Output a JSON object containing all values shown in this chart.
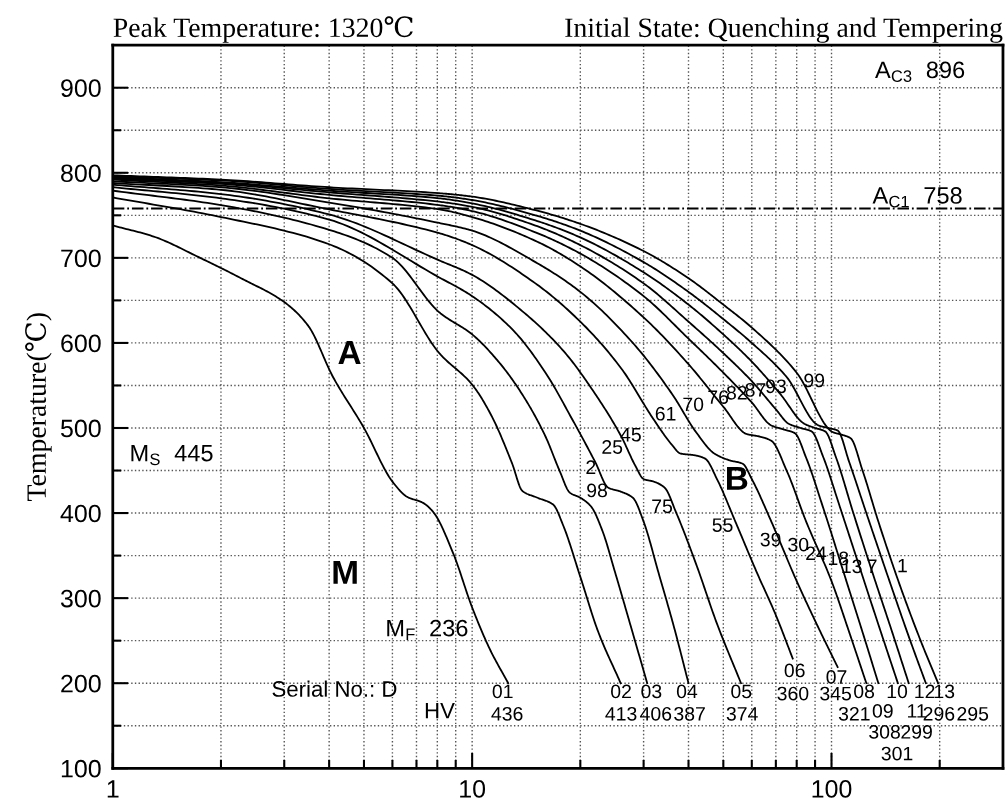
{
  "chart_data": {
    "type": "line",
    "title": "Peak Temperature: 1320℃",
    "subtitle": "Initial State: Quenching and Tempering",
    "ylabel": "Temperature(℃)",
    "log": "x",
    "grid": true,
    "marker": "none",
    "line_style": "solid",
    "xlim": [
      1,
      300
    ],
    "ylim": [
      100,
      950
    ],
    "xticks": [
      1,
      {
        "value": 2,
        "label": null
      },
      {
        "value": 3,
        "label": null
      },
      {
        "value": 4,
        "label": null
      },
      {
        "value": 5,
        "label": null
      },
      {
        "value": 6,
        "label": null
      },
      {
        "value": 7,
        "label": null
      },
      {
        "value": 8,
        "label": null
      },
      {
        "value": 9,
        "label": null
      },
      10,
      {
        "value": 20,
        "label": null
      },
      {
        "value": 30,
        "label": null
      },
      {
        "value": 40,
        "label": null
      },
      {
        "value": 50,
        "label": null
      },
      {
        "value": 60,
        "label": null
      },
      {
        "value": 70,
        "label": null
      },
      {
        "value": 80,
        "label": null
      },
      {
        "value": 90,
        "label": null
      },
      100,
      {
        "value": 200,
        "label": null
      }
    ],
    "yticks": [
      100,
      {
        "value": 150,
        "label": null
      },
      200,
      {
        "value": 250,
        "label": null
      },
      300,
      {
        "value": 350,
        "label": null
      },
      400,
      {
        "value": 450,
        "label": null
      },
      500,
      {
        "value": 550,
        "label": null
      },
      600,
      {
        "value": 650,
        "label": null
      },
      700,
      {
        "value": 750,
        "label": null
      },
      800,
      {
        "value": 850,
        "label": null
      },
      900
    ],
    "series": [
      {
        "color": "#000000",
        "x": [
          1,
          1.3,
          1.75,
          2.3,
          3,
          3.5,
          4.1,
          5,
          6,
          6.6,
          7.3,
          7.8,
          8.85,
          10,
          11.2,
          12.6
        ],
        "values": [
          738,
          725,
          700,
          675,
          648,
          620,
          560,
          500,
          437,
          419,
          412,
          401,
          353,
          289,
          240,
          200
        ]
      },
      {
        "color": "#000000",
        "x": [
          1,
          2,
          4,
          6,
          8.1,
          10,
          11.3,
          12.9,
          13.8,
          15.2,
          16.8,
          17.9,
          20,
          22.4,
          25.9
        ],
        "values": [
          771,
          748,
          716,
          670,
          588,
          551,
          515,
          459,
          426,
          418,
          410,
          386,
          325,
          261,
          200
        ]
      },
      {
        "color": "#000000",
        "x": [
          1,
          2,
          4,
          6,
          8.1,
          10,
          12,
          14,
          16,
          17.5,
          18.7,
          20,
          21.4,
          23,
          25,
          27.5,
          30.7
        ],
        "values": [
          779,
          762,
          733,
          700,
          636,
          610,
          575,
          535,
          490,
          450,
          424,
          418,
          408,
          380,
          330,
          270,
          200
        ]
      },
      {
        "color": "#000000",
        "x": [
          1,
          2,
          4,
          8.1,
          10,
          13,
          16,
          19,
          22,
          23.9,
          26,
          28,
          30,
          33,
          36.5,
          40
        ],
        "values": [
          783,
          770,
          745,
          677,
          655,
          615,
          565,
          510,
          460,
          430,
          425,
          418,
          390,
          330,
          265,
          200
        ]
      },
      {
        "color": "#000000",
        "x": [
          1,
          2,
          4,
          8.1,
          10,
          14,
          18,
          22,
          26,
          28.5,
          30,
          32,
          34.3,
          37,
          42,
          48,
          56
        ],
        "values": [
          786,
          775,
          751,
          697,
          680,
          635,
          590,
          540,
          490,
          455,
          440,
          437,
          430,
          400,
          340,
          270,
          200
        ]
      },
      {
        "color": "#000000",
        "x": [
          1,
          2,
          4,
          8.1,
          10,
          15,
          20,
          26,
          32,
          36,
          38,
          41.5,
          44.5,
          48,
          54,
          62,
          70,
          78
        ],
        "values": [
          788,
          780,
          757,
          729,
          715,
          670,
          625,
          570,
          510,
          480,
          470,
          468,
          464,
          440,
          390,
          330,
          280,
          229
        ]
      },
      {
        "color": "#000000",
        "x": [
          1,
          2,
          4,
          8.1,
          10,
          15,
          20,
          28,
          36,
          42,
          47.2,
          52,
          56.6,
          60,
          68,
          80,
          92,
          104
        ],
        "values": [
          790,
          783,
          765,
          741,
          732,
          695,
          660,
          600,
          540,
          495,
          470,
          462,
          458,
          440,
          390,
          320,
          265,
          219
        ]
      },
      {
        "color": "#000000",
        "x": [
          1,
          2,
          4,
          8.1,
          10,
          15,
          20,
          30,
          40,
          50,
          58,
          63,
          68,
          75,
          85,
          100,
          112,
          125
        ],
        "values": [
          792,
          785,
          770,
          757,
          748,
          720,
          690,
          630,
          575,
          525,
          493,
          490,
          485,
          450,
          390,
          320,
          260,
          200
        ]
      },
      {
        "color": "#000000",
        "x": [
          1,
          2,
          4,
          8.1,
          10,
          15,
          20,
          30,
          40,
          50,
          60,
          68,
          74,
          79,
          85,
          95,
          110,
          122,
          135
        ],
        "values": [
          793,
          787,
          774,
          762,
          755,
          730,
          705,
          655,
          605,
          565,
          530,
          503,
          498,
          494,
          465,
          405,
          320,
          260,
          200
        ]
      },
      {
        "color": "#000000",
        "x": [
          1,
          2,
          4,
          8.1,
          10,
          15,
          20,
          30,
          40,
          50,
          60,
          70,
          76,
          82,
          88,
          95,
          105,
          120,
          136,
          153
        ],
        "values": [
          794,
          788,
          777,
          766,
          760,
          738,
          715,
          670,
          625,
          588,
          555,
          522,
          505,
          500,
          496,
          465,
          410,
          335,
          265,
          200
        ]
      },
      {
        "color": "#000000",
        "x": [
          1,
          2,
          4,
          8.1,
          10,
          15,
          20,
          30,
          40,
          50,
          60,
          72,
          84,
          90,
          96,
          103,
          115,
          130,
          147,
          164
        ],
        "values": [
          795,
          789,
          779,
          770,
          764,
          744,
          724,
          683,
          645,
          610,
          578,
          540,
          505,
          500,
          496,
          465,
          400,
          330,
          262,
          200
        ]
      },
      {
        "color": "#000000",
        "x": [
          1,
          2,
          4,
          8.1,
          10,
          15,
          20,
          30,
          40,
          50,
          60,
          75,
          92,
          98,
          104,
          112,
          125,
          145,
          164,
          183
        ],
        "values": [
          796,
          791,
          781,
          773,
          768,
          750,
          732,
          695,
          660,
          628,
          600,
          560,
          503,
          500,
          497,
          460,
          400,
          320,
          255,
          200
        ]
      },
      {
        "color": "#000000",
        "x": [
          1,
          2,
          4,
          8.1,
          10,
          15,
          20,
          30,
          40,
          50,
          60,
          80,
          101,
          107,
          113,
          122,
          135,
          155,
          177,
          198
        ],
        "values": [
          797,
          792,
          783,
          776,
          772,
          756,
          740,
          708,
          676,
          645,
          618,
          565,
          495,
          492,
          488,
          450,
          390,
          315,
          250,
          200
        ]
      }
    ],
    "ref_lines": [
      {
        "axis": "y",
        "value": 758,
        "label": "A$_{C1}$  758",
        "color": "#000000",
        "line_style": "dashdot"
      }
    ],
    "annotations": [
      "A$_{C3}$  896",
      "M$_{S}$  445",
      "M$_{F}$  236",
      "A",
      "B",
      "M",
      "Serial No.: D",
      "HV",
      "2",
      "25",
      "45",
      "61",
      "70",
      "76",
      "82",
      "87",
      "93",
      "99",
      "98",
      "75",
      "55",
      "39",
      "30",
      "24",
      "18",
      "13",
      "7",
      "1",
      "01",
      "02",
      "03",
      "04",
      "05",
      "06",
      "07",
      "08",
      "09",
      "10",
      "11",
      "12",
      "13",
      "436",
      "413",
      "406",
      "387",
      "374",
      "360",
      "345",
      "321",
      "308",
      "299",
      "296",
      "295",
      "301"
    ]
  }
}
